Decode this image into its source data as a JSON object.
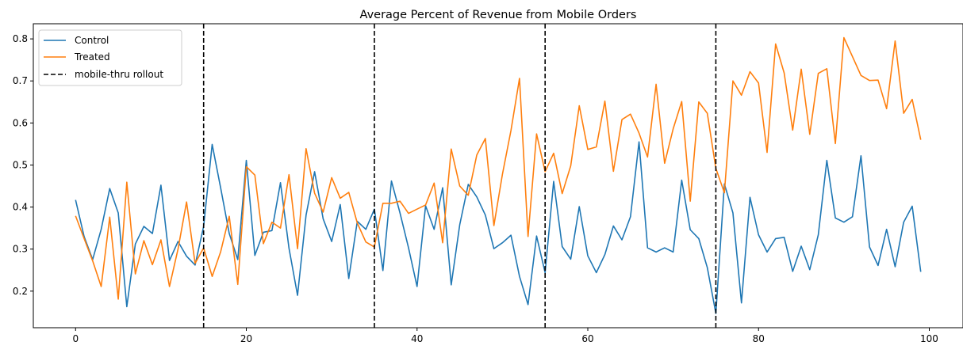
{
  "chart_data": {
    "type": "line",
    "title": "Average Percent of Revenue from Mobile Orders",
    "xlabel": "",
    "ylabel": "",
    "xlim": [
      -4.95,
      103.95
    ],
    "ylim": [
      0.113,
      0.836
    ],
    "x_ticks": [
      0,
      20,
      40,
      60,
      80,
      100
    ],
    "y_ticks": [
      0.2,
      0.3,
      0.4,
      0.5,
      0.6,
      0.7,
      0.8
    ],
    "x_tick_labels": [
      "0",
      "20",
      "40",
      "60",
      "80",
      "100"
    ],
    "y_tick_labels": [
      "0.2",
      "0.3",
      "0.4",
      "0.5",
      "0.6",
      "0.7",
      "0.8"
    ],
    "grid": false,
    "legend_location": "top-left",
    "series": [
      {
        "name": "Control",
        "color": "#1f77b4",
        "x": [
          0,
          1,
          2,
          3,
          4,
          5,
          6,
          7,
          8,
          9,
          10,
          11,
          12,
          13,
          14,
          15,
          16,
          17,
          18,
          19,
          20,
          21,
          22,
          23,
          24,
          25,
          26,
          27,
          28,
          29,
          30,
          31,
          32,
          33,
          34,
          35,
          36,
          37,
          38,
          39,
          40,
          41,
          42,
          43,
          44,
          45,
          46,
          47,
          48,
          49,
          50,
          51,
          52,
          53,
          54,
          55,
          56,
          57,
          58,
          59,
          60,
          61,
          62,
          63,
          64,
          65,
          66,
          67,
          68,
          69,
          70,
          71,
          72,
          73,
          74,
          75,
          76,
          77,
          78,
          79,
          80,
          81,
          82,
          83,
          84,
          85,
          86,
          87,
          88,
          89,
          90,
          91,
          92,
          93,
          94,
          95,
          96,
          97,
          98,
          99
        ],
        "values": [
          0.417,
          0.33,
          0.275,
          0.347,
          0.444,
          0.386,
          0.163,
          0.312,
          0.354,
          0.337,
          0.452,
          0.273,
          0.318,
          0.283,
          0.262,
          0.354,
          0.549,
          0.445,
          0.337,
          0.275,
          0.511,
          0.285,
          0.34,
          0.344,
          0.458,
          0.302,
          0.19,
          0.381,
          0.484,
          0.372,
          0.318,
          0.406,
          0.23,
          0.366,
          0.347,
          0.395,
          0.249,
          0.462,
          0.386,
          0.303,
          0.211,
          0.403,
          0.347,
          0.446,
          0.215,
          0.358,
          0.454,
          0.424,
          0.381,
          0.301,
          0.315,
          0.333,
          0.235,
          0.168,
          0.331,
          0.244,
          0.461,
          0.306,
          0.276,
          0.401,
          0.284,
          0.244,
          0.287,
          0.355,
          0.322,
          0.377,
          0.555,
          0.303,
          0.293,
          0.303,
          0.293,
          0.464,
          0.346,
          0.325,
          0.256,
          0.147,
          0.455,
          0.386,
          0.172,
          0.423,
          0.334,
          0.293,
          0.325,
          0.328,
          0.247,
          0.307,
          0.251,
          0.334,
          0.511,
          0.374,
          0.364,
          0.377,
          0.522,
          0.305,
          0.261,
          0.347,
          0.258,
          0.364,
          0.402,
          0.246
        ]
      },
      {
        "name": "Treated",
        "color": "#ff7f0e",
        "x": [
          0,
          1,
          2,
          3,
          4,
          5,
          6,
          7,
          8,
          9,
          10,
          11,
          12,
          13,
          14,
          15,
          16,
          17,
          18,
          19,
          20,
          21,
          22,
          23,
          24,
          25,
          26,
          27,
          28,
          29,
          30,
          31,
          32,
          33,
          34,
          35,
          36,
          37,
          38,
          39,
          40,
          41,
          42,
          43,
          44,
          45,
          46,
          47,
          48,
          49,
          50,
          51,
          52,
          53,
          54,
          55,
          56,
          57,
          58,
          59,
          60,
          61,
          62,
          63,
          64,
          65,
          66,
          67,
          68,
          69,
          70,
          71,
          72,
          73,
          74,
          75,
          76,
          77,
          78,
          79,
          80,
          81,
          82,
          83,
          84,
          85,
          86,
          87,
          88,
          89,
          90,
          91,
          92,
          93,
          94,
          95,
          96,
          97,
          98,
          99
        ],
        "values": [
          0.379,
          0.325,
          0.272,
          0.211,
          0.376,
          0.181,
          0.459,
          0.241,
          0.32,
          0.263,
          0.322,
          0.211,
          0.3,
          0.412,
          0.266,
          0.303,
          0.235,
          0.294,
          0.378,
          0.216,
          0.496,
          0.476,
          0.313,
          0.364,
          0.35,
          0.477,
          0.301,
          0.539,
          0.433,
          0.388,
          0.47,
          0.421,
          0.435,
          0.362,
          0.317,
          0.305,
          0.409,
          0.409,
          0.414,
          0.385,
          0.395,
          0.405,
          0.457,
          0.315,
          0.538,
          0.45,
          0.428,
          0.524,
          0.563,
          0.356,
          0.478,
          0.582,
          0.706,
          0.33,
          0.574,
          0.484,
          0.528,
          0.432,
          0.498,
          0.641,
          0.537,
          0.543,
          0.652,
          0.485,
          0.608,
          0.621,
          0.576,
          0.519,
          0.692,
          0.504,
          0.586,
          0.651,
          0.414,
          0.65,
          0.623,
          0.492,
          0.434,
          0.7,
          0.666,
          0.722,
          0.695,
          0.53,
          0.788,
          0.719,
          0.583,
          0.728,
          0.573,
          0.718,
          0.729,
          0.551,
          0.803,
          0.758,
          0.713,
          0.701,
          0.702,
          0.634,
          0.795,
          0.623,
          0.656,
          0.56
        ]
      }
    ],
    "rollout": {
      "name": "mobile-thru rollout",
      "color": "#000000",
      "x": [
        15,
        35,
        55,
        75
      ]
    }
  }
}
